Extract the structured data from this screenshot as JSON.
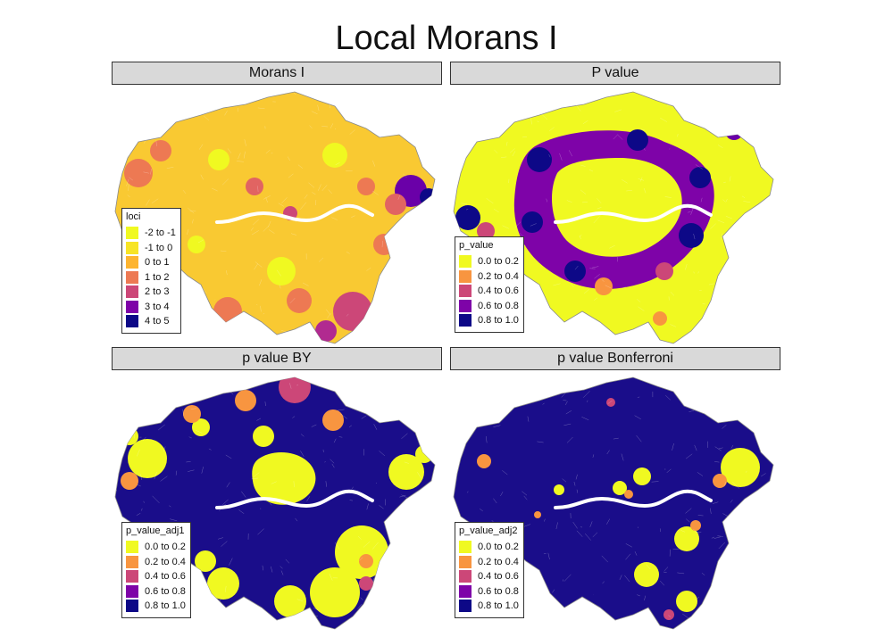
{
  "title": "Local Morans I",
  "palette_colors": [
    "#f0f921",
    "#fca636",
    "#e16462",
    "#b12a90",
    "#6a00a8",
    "#0d0887"
  ],
  "panels": [
    {
      "strip": "Morans I",
      "legend": {
        "title": "loci",
        "items": [
          {
            "label": "-2 to -1",
            "color": "#f0f921"
          },
          {
            "label": "-1 to 0",
            "color": "#f7e425"
          },
          {
            "label": "0 to 1",
            "color": "#fdb42f"
          },
          {
            "label": "1 to 2",
            "color": "#ed7953"
          },
          {
            "label": "2 to 3",
            "color": "#cc4778"
          },
          {
            "label": "3 to 4",
            "color": "#7e03a8"
          },
          {
            "label": "4 to 5",
            "color": "#0d0887"
          }
        ]
      }
    },
    {
      "strip": "P value",
      "legend": {
        "title": "p_value",
        "items": [
          {
            "label": "0.0 to 0.2",
            "color": "#f0f921"
          },
          {
            "label": "0.2 to 0.4",
            "color": "#f89540"
          },
          {
            "label": "0.4 to 0.6",
            "color": "#cc4778"
          },
          {
            "label": "0.6 to 0.8",
            "color": "#7e03a8"
          },
          {
            "label": "0.8 to 1.0",
            "color": "#0d0887"
          }
        ]
      }
    },
    {
      "strip": "p value BY",
      "legend": {
        "title": "p_value_adj1",
        "items": [
          {
            "label": "0.0 to 0.2",
            "color": "#f0f921"
          },
          {
            "label": "0.2 to 0.4",
            "color": "#f89540"
          },
          {
            "label": "0.4 to 0.6",
            "color": "#cc4778"
          },
          {
            "label": "0.6 to 0.8",
            "color": "#7e03a8"
          },
          {
            "label": "0.8 to 1.0",
            "color": "#0d0887"
          }
        ]
      }
    },
    {
      "strip": "p value Bonferroni",
      "legend": {
        "title": "p_value_adj2",
        "items": [
          {
            "label": "0.0 to 0.2",
            "color": "#f0f921"
          },
          {
            "label": "0.2 to 0.4",
            "color": "#f89540"
          },
          {
            "label": "0.4 to 0.6",
            "color": "#cc4778"
          },
          {
            "label": "0.6 to 0.8",
            "color": "#7e03a8"
          },
          {
            "label": "0.8 to 1.0",
            "color": "#0d0887"
          }
        ]
      }
    }
  ]
}
